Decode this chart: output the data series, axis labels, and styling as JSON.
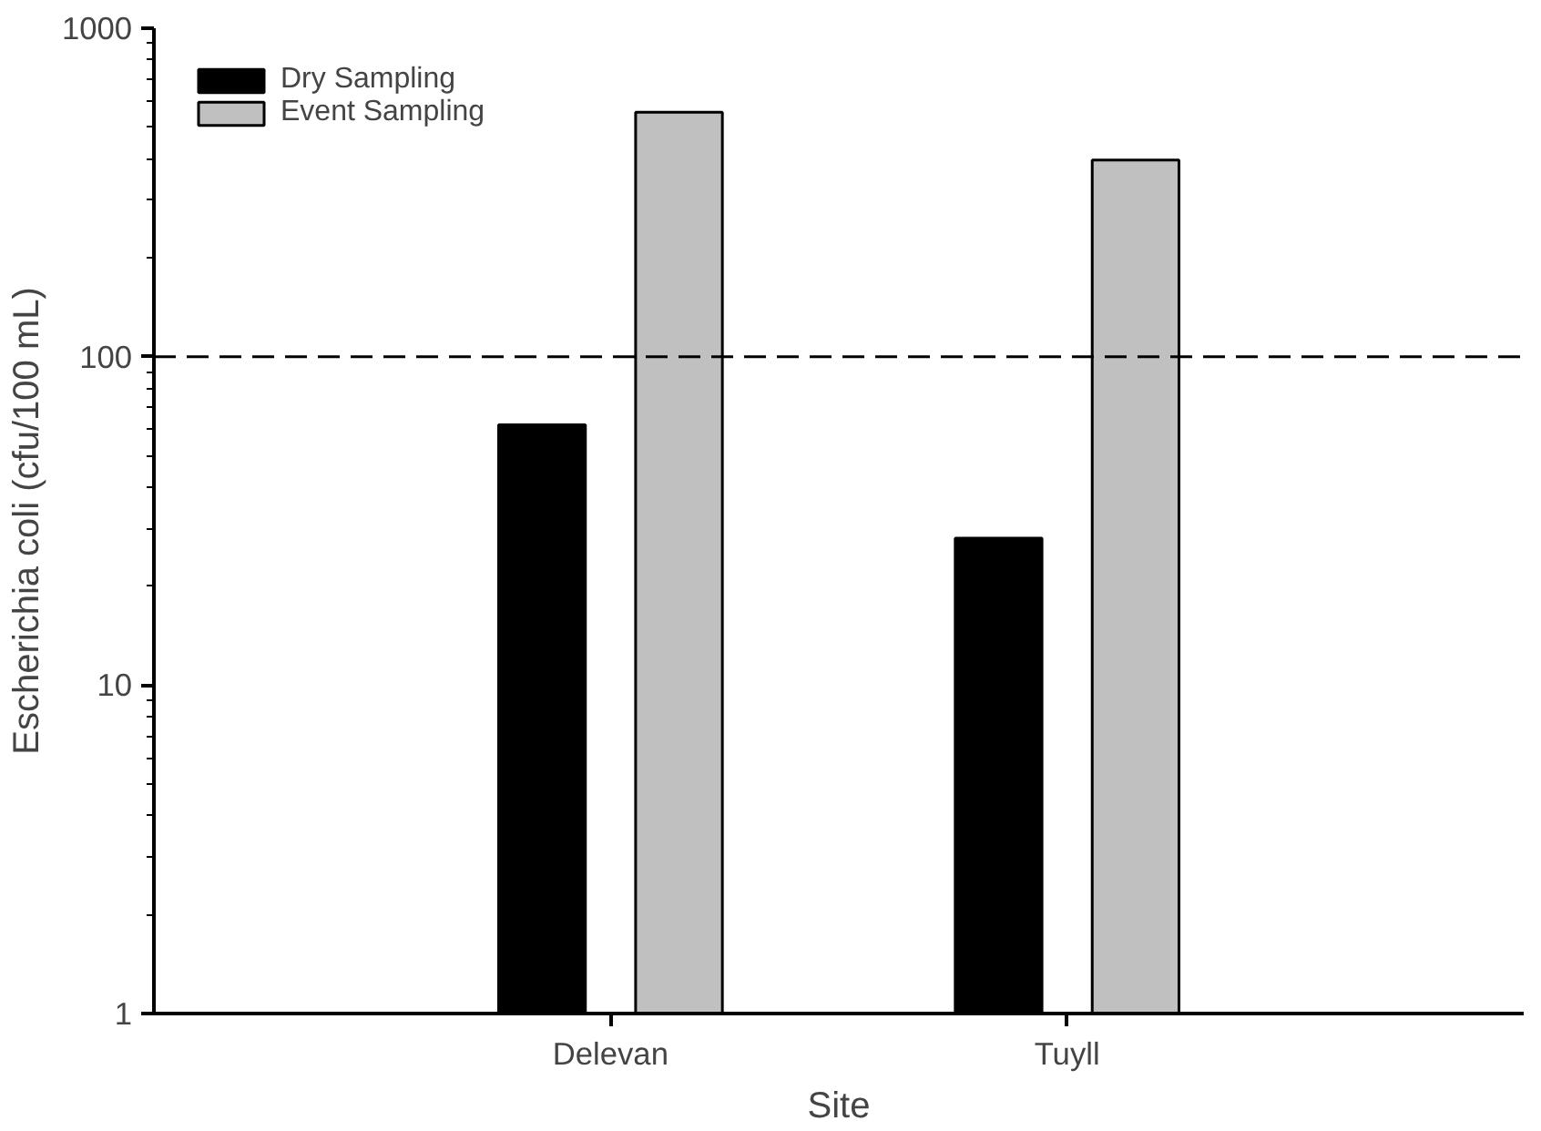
{
  "chart_data": {
    "type": "bar",
    "xlabel": "Site",
    "ylabel": "Escherichia coli (cfu/100 mL)",
    "categories": [
      "Delevan",
      "Tuyll"
    ],
    "series": [
      {
        "name": "Dry Sampling",
        "color": "#000000",
        "values": [
          62,
          28
        ]
      },
      {
        "name": "Event Sampling",
        "color": "#c0c0c0",
        "values": [
          555,
          397
        ]
      }
    ],
    "log": "y",
    "ylim": [
      1,
      1000
    ],
    "yticks": [
      1,
      10,
      100,
      1000
    ],
    "grid": false,
    "legend": "top left",
    "ref_lines": [
      {
        "axis": "y",
        "value": 100,
        "line_style": "dashed",
        "color": "#000000"
      }
    ]
  }
}
